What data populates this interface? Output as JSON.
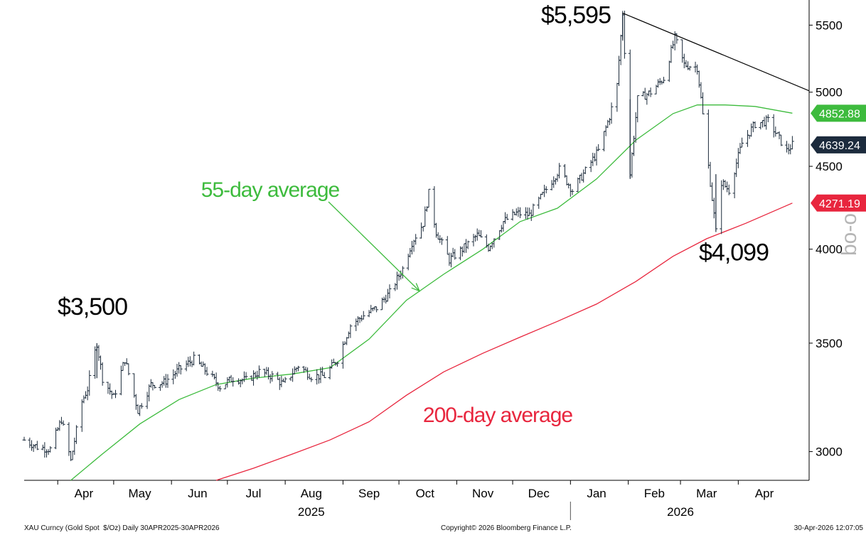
{
  "chart_data": {
    "type": "line",
    "y_scale": "log",
    "ylim": [
      2880,
      5700
    ],
    "y_ticks": [
      3000,
      3500,
      4000,
      4500,
      5000,
      5500
    ],
    "x_range": [
      "2025-03-14",
      "2026-05-09"
    ],
    "month_labels": [
      {
        "label": "Apr",
        "date": "2025-04-15"
      },
      {
        "label": "May",
        "date": "2025-05-15"
      },
      {
        "label": "Jun",
        "date": "2025-06-15"
      },
      {
        "label": "Jul",
        "date": "2025-07-15"
      },
      {
        "label": "Aug",
        "date": "2025-08-15"
      },
      {
        "label": "Sep",
        "date": "2025-09-15"
      },
      {
        "label": "Oct",
        "date": "2025-10-15"
      },
      {
        "label": "Nov",
        "date": "2025-11-15"
      },
      {
        "label": "Dec",
        "date": "2025-12-15"
      },
      {
        "label": "Jan",
        "date": "2026-01-15"
      },
      {
        "label": "Feb",
        "date": "2026-02-15"
      },
      {
        "label": "Mar",
        "date": "2026-03-15"
      },
      {
        "label": "Apr",
        "date": "2026-04-15"
      }
    ],
    "year_labels": [
      {
        "label": "2025",
        "date": "2025-08-15"
      },
      {
        "label": "2026",
        "date": "2026-03-01"
      }
    ],
    "year_divider_date": "2026-01-01",
    "series": [
      {
        "name": "XAU Curncy (Gold Spot $/Oz) Daily",
        "kind": "price",
        "color": "#1b2a3a",
        "x": [
          "2025-03-14",
          "2025-03-21",
          "2025-03-28",
          "2025-04-03",
          "2025-04-08",
          "2025-04-14",
          "2025-04-17",
          "2025-04-22",
          "2025-04-25",
          "2025-05-01",
          "2025-05-07",
          "2025-05-14",
          "2025-05-21",
          "2025-05-28",
          "2025-06-05",
          "2025-06-13",
          "2025-06-20",
          "2025-06-27",
          "2025-07-04",
          "2025-07-11",
          "2025-07-18",
          "2025-07-25",
          "2025-07-31",
          "2025-08-08",
          "2025-08-15",
          "2025-08-22",
          "2025-08-29",
          "2025-09-05",
          "2025-09-12",
          "2025-09-19",
          "2025-09-26",
          "2025-10-03",
          "2025-10-08",
          "2025-10-14",
          "2025-10-17",
          "2025-10-21",
          "2025-10-28",
          "2025-11-04",
          "2025-11-12",
          "2025-11-18",
          "2025-11-26",
          "2025-12-03",
          "2025-12-10",
          "2025-12-17",
          "2025-12-26",
          "2026-01-02",
          "2026-01-09",
          "2026-01-16",
          "2026-01-22",
          "2026-01-26",
          "2026-01-29",
          "2026-02-02",
          "2026-02-06",
          "2026-02-13",
          "2026-02-20",
          "2026-02-26",
          "2026-03-03",
          "2026-03-10",
          "2026-03-16",
          "2026-03-20",
          "2026-03-23",
          "2026-03-27",
          "2026-04-03",
          "2026-04-10",
          "2026-04-17",
          "2026-04-22",
          "2026-04-27",
          "2026-04-30"
        ],
        "y": [
          3050,
          3020,
          3010,
          3140,
          2960,
          3220,
          3280,
          3500,
          3330,
          3240,
          3420,
          3180,
          3300,
          3310,
          3370,
          3420,
          3360,
          3290,
          3330,
          3320,
          3360,
          3340,
          3300,
          3390,
          3340,
          3340,
          3420,
          3590,
          3640,
          3680,
          3760,
          3890,
          4040,
          4150,
          4330,
          4100,
          3940,
          4000,
          4080,
          4010,
          4160,
          4210,
          4200,
          4320,
          4480,
          4350,
          4470,
          4600,
          4830,
          5050,
          5595,
          4450,
          4950,
          5000,
          5100,
          5400,
          5200,
          5180,
          4500,
          4099,
          4400,
          4350,
          4650,
          4780,
          4800,
          4700,
          4600,
          4639.24
        ]
      },
      {
        "name": "55-day average",
        "kind": "ma55",
        "color": "#3dbb3d",
        "x": [
          "2025-04-08",
          "2025-04-25",
          "2025-05-15",
          "2025-06-05",
          "2025-06-25",
          "2025-07-15",
          "2025-08-05",
          "2025-08-25",
          "2025-09-15",
          "2025-10-05",
          "2025-10-25",
          "2025-11-15",
          "2025-12-05",
          "2025-12-25",
          "2026-01-15",
          "2026-02-05",
          "2026-02-25",
          "2026-03-10",
          "2026-03-25",
          "2026-04-10",
          "2026-04-30"
        ],
        "y": [
          2880,
          2990,
          3120,
          3230,
          3300,
          3330,
          3350,
          3380,
          3520,
          3720,
          3860,
          4000,
          4160,
          4240,
          4420,
          4670,
          4850,
          4910,
          4910,
          4900,
          4852.88
        ]
      },
      {
        "name": "200-day average",
        "kind": "ma200",
        "color": "#e8263e",
        "x": [
          "2025-06-25",
          "2025-07-15",
          "2025-08-05",
          "2025-08-25",
          "2025-09-15",
          "2025-10-05",
          "2025-10-25",
          "2025-11-15",
          "2025-12-05",
          "2025-12-25",
          "2026-01-15",
          "2026-02-05",
          "2026-02-25",
          "2026-03-15",
          "2026-04-05",
          "2026-04-30"
        ],
        "y": [
          2880,
          2930,
          2990,
          3050,
          3130,
          3250,
          3360,
          3450,
          3530,
          3610,
          3700,
          3820,
          3960,
          4060,
          4150,
          4271.19
        ]
      }
    ],
    "trendline": {
      "x": [
        "2026-01-29",
        "2026-05-09"
      ],
      "y": [
        5595,
        5010
      ]
    },
    "last_values": [
      {
        "label": "4852.88",
        "value": 4852.88,
        "color": "#3dbb3d"
      },
      {
        "label": "4639.24",
        "value": 4639.24,
        "color": "#1c2b3d"
      },
      {
        "label": "4271.19",
        "value": 4271.19,
        "color": "#e8263e"
      }
    ],
    "annotations": [
      {
        "text": "$3,500",
        "color": "#000000"
      },
      {
        "text": "$5,595",
        "color": "#000000"
      },
      {
        "text": "$4,099",
        "color": "#000000"
      },
      {
        "text": "55-day average",
        "color": "#3dbb3d"
      },
      {
        "text": "200-day average",
        "color": "#e8263e"
      }
    ]
  },
  "footer": {
    "left": "XAU Curncy (Gold Spot  $/Oz) Daily 30APR2025-30APR2026",
    "center": "Copyright© 2026 Bloomberg Finance L.P.",
    "right": "30-Apr-2026 12:07:05"
  },
  "watermark": "bo-o"
}
